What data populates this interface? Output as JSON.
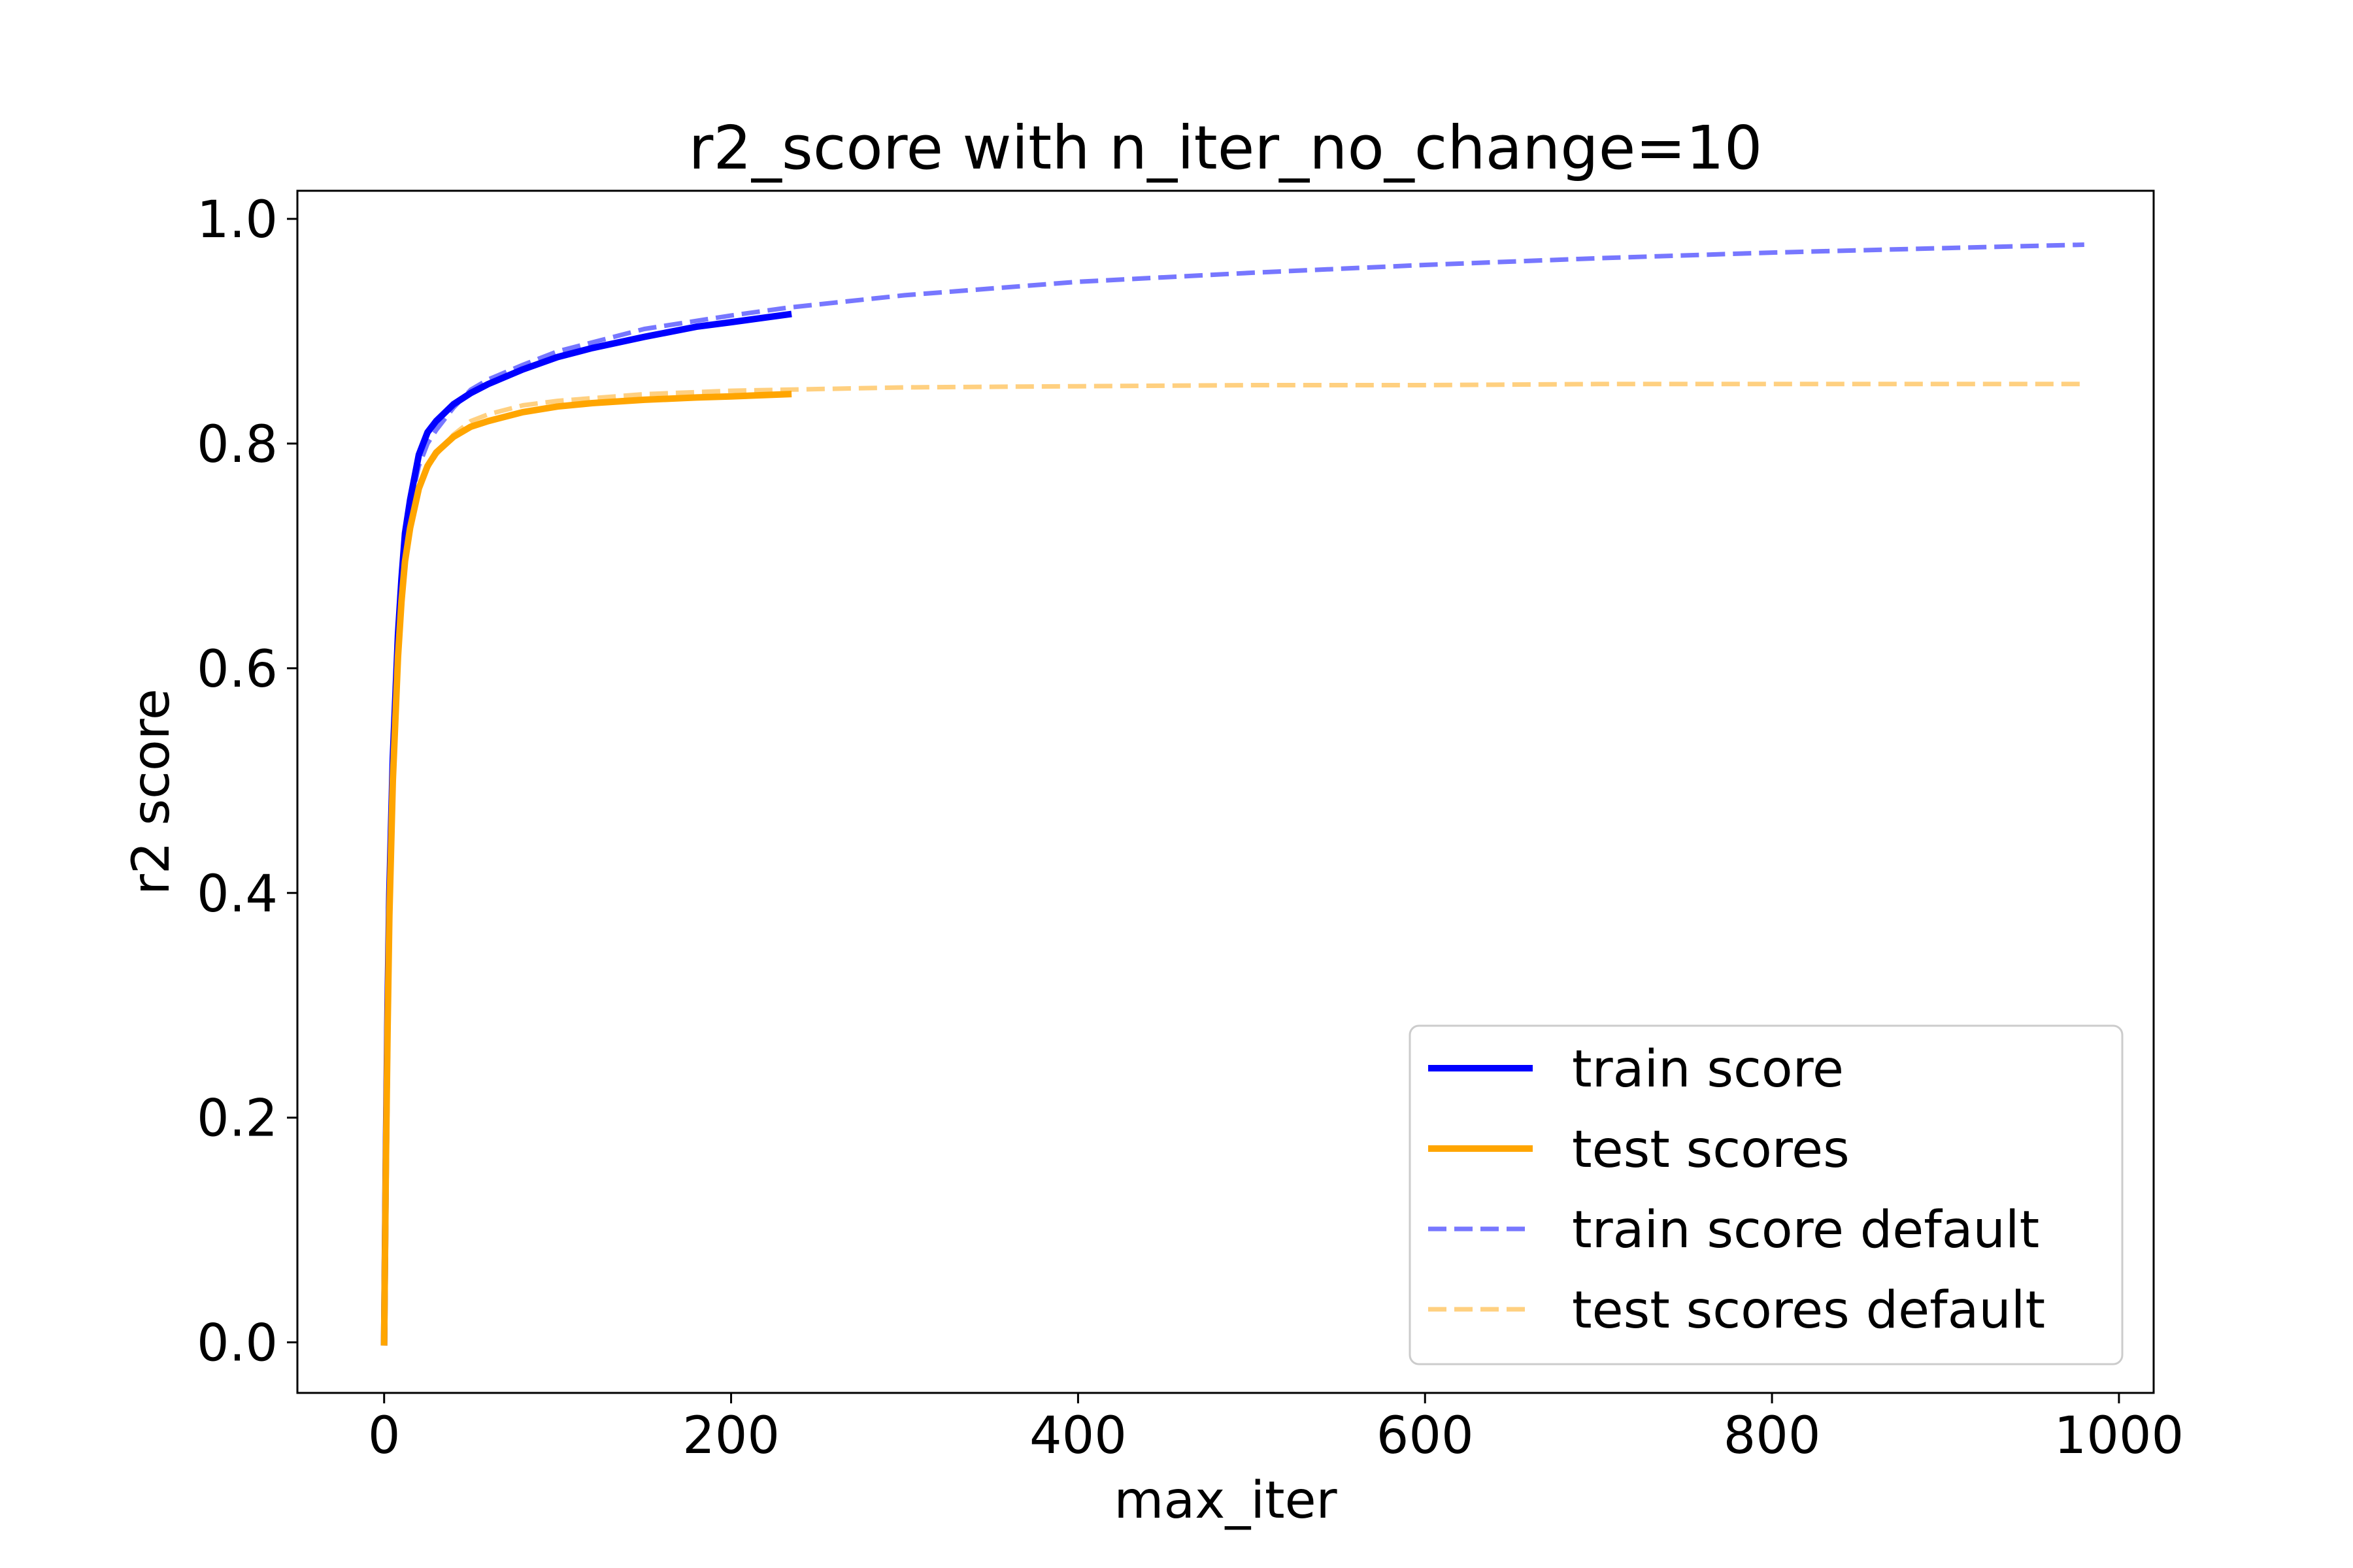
{
  "chart_data": {
    "type": "line",
    "title": "r2_score with n_iter_no_change=10",
    "xlabel": "max_iter",
    "ylabel": "r2 score",
    "xlim": [
      -50,
      1020
    ],
    "ylim": [
      -0.045,
      1.025
    ],
    "xticks": [
      0,
      200,
      400,
      600,
      800,
      1000
    ],
    "yticks": [
      0.0,
      0.2,
      0.4,
      0.6,
      0.8,
      1.0
    ],
    "xtick_labels": [
      "0",
      "200",
      "400",
      "600",
      "800",
      "1000"
    ],
    "ytick_labels": [
      "0.0",
      "0.2",
      "0.4",
      "0.6",
      "0.8",
      "1.0"
    ],
    "grid": false,
    "legend_position": "lower-right",
    "series": [
      {
        "name": "train score",
        "color": "#0000ff",
        "style": "solid",
        "x": [
          0,
          1,
          2,
          3,
          5,
          8,
          10,
          12,
          15,
          20,
          25,
          30,
          40,
          50,
          60,
          80,
          100,
          120,
          150,
          180,
          200,
          233
        ],
        "y": [
          0.0,
          0.17,
          0.3,
          0.4,
          0.52,
          0.63,
          0.68,
          0.72,
          0.75,
          0.79,
          0.81,
          0.82,
          0.835,
          0.845,
          0.853,
          0.866,
          0.877,
          0.885,
          0.895,
          0.904,
          0.908,
          0.915
        ]
      },
      {
        "name": "test scores",
        "color": "#ffa500",
        "style": "solid",
        "x": [
          0,
          1,
          2,
          3,
          5,
          8,
          10,
          12,
          15,
          20,
          25,
          30,
          40,
          50,
          60,
          80,
          100,
          120,
          150,
          180,
          200,
          233
        ],
        "y": [
          0.0,
          0.16,
          0.28,
          0.38,
          0.5,
          0.61,
          0.66,
          0.695,
          0.725,
          0.76,
          0.78,
          0.792,
          0.806,
          0.815,
          0.82,
          0.828,
          0.833,
          0.836,
          0.839,
          0.841,
          0.842,
          0.844
        ]
      },
      {
        "name": "train score default",
        "color": "#7777ff",
        "style": "dashed",
        "x": [
          0,
          1,
          2,
          3,
          5,
          8,
          10,
          12,
          15,
          20,
          25,
          30,
          40,
          50,
          60,
          80,
          100,
          150,
          200,
          233,
          300,
          400,
          500,
          600,
          700,
          800,
          900,
          980
        ],
        "y": [
          0.0,
          0.16,
          0.29,
          0.39,
          0.51,
          0.62,
          0.67,
          0.71,
          0.745,
          0.78,
          0.8,
          0.812,
          0.832,
          0.848,
          0.857,
          0.87,
          0.882,
          0.902,
          0.914,
          0.921,
          0.932,
          0.944,
          0.952,
          0.959,
          0.965,
          0.97,
          0.974,
          0.977
        ]
      },
      {
        "name": "test scores default",
        "color": "#ffd080",
        "style": "dashed",
        "x": [
          0,
          1,
          2,
          3,
          5,
          8,
          10,
          12,
          15,
          20,
          25,
          30,
          40,
          50,
          60,
          80,
          100,
          150,
          200,
          233,
          300,
          400,
          500,
          600,
          700,
          800,
          900,
          980
        ],
        "y": [
          0.0,
          0.15,
          0.27,
          0.37,
          0.49,
          0.6,
          0.65,
          0.69,
          0.722,
          0.758,
          0.778,
          0.79,
          0.808,
          0.82,
          0.826,
          0.834,
          0.838,
          0.844,
          0.847,
          0.848,
          0.85,
          0.851,
          0.852,
          0.852,
          0.853,
          0.853,
          0.853,
          0.853
        ]
      }
    ]
  }
}
